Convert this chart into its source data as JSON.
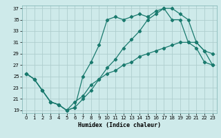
{
  "title": "",
  "xlabel": "Humidex (Indice chaleur)",
  "background_color": "#ceeaea",
  "line_color": "#1a7a6e",
  "grid_color": "#aecece",
  "xlim": [
    -0.5,
    23.5
  ],
  "ylim": [
    18.5,
    37.5
  ],
  "xticks": [
    0,
    1,
    2,
    3,
    4,
    5,
    6,
    7,
    8,
    9,
    10,
    11,
    12,
    13,
    14,
    15,
    16,
    17,
    18,
    19,
    20,
    21,
    22,
    23
  ],
  "yticks": [
    19,
    21,
    23,
    25,
    27,
    29,
    31,
    33,
    35,
    37
  ],
  "line1_x": [
    0,
    1,
    2,
    3,
    4,
    5,
    6,
    7,
    8,
    9,
    10,
    11,
    12,
    13,
    14,
    15,
    16,
    17,
    18,
    19,
    20,
    21,
    22,
    23
  ],
  "line1_y": [
    25.5,
    24.5,
    22.5,
    20.5,
    20.0,
    19.0,
    19.5,
    21.0,
    22.5,
    24.5,
    26.5,
    28.0,
    30.0,
    31.5,
    33.0,
    35.0,
    36.0,
    37.0,
    37.0,
    36.0,
    35.0,
    31.0,
    29.5,
    29.0
  ],
  "line2_x": [
    0,
    1,
    2,
    3,
    4,
    5,
    6,
    7,
    8,
    9,
    10,
    11,
    12,
    13,
    14,
    15,
    16,
    17,
    18,
    19,
    20,
    21,
    22,
    23
  ],
  "line2_y": [
    25.5,
    24.5,
    22.5,
    20.5,
    20.0,
    19.0,
    19.5,
    25.0,
    27.5,
    30.5,
    35.0,
    35.5,
    35.0,
    35.5,
    36.0,
    35.5,
    36.5,
    37.0,
    35.0,
    35.0,
    31.0,
    31.0,
    29.5,
    27.0
  ],
  "line3_x": [
    0,
    1,
    2,
    3,
    4,
    5,
    6,
    7,
    8,
    9,
    10,
    11,
    12,
    13,
    14,
    15,
    16,
    17,
    18,
    19,
    20,
    21,
    22,
    23
  ],
  "line3_y": [
    25.5,
    24.5,
    22.5,
    20.5,
    20.0,
    19.0,
    20.5,
    21.5,
    23.5,
    24.5,
    25.5,
    26.0,
    27.0,
    27.5,
    28.5,
    29.0,
    29.5,
    30.0,
    30.5,
    31.0,
    31.0,
    30.0,
    27.5,
    27.0
  ]
}
